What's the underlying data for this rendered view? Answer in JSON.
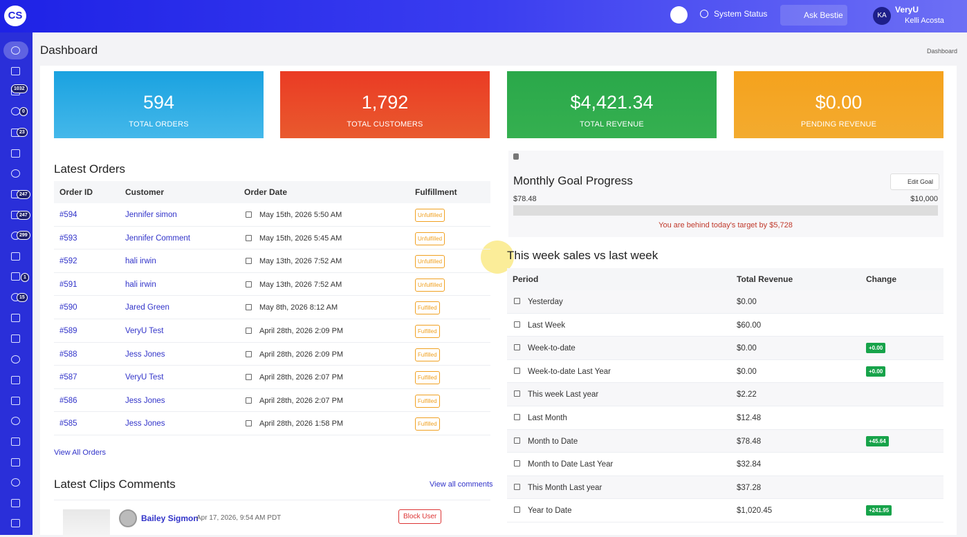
{
  "header": {
    "brand": "CS",
    "system_status": "System Status",
    "ask": "Ask Bestie",
    "user_short": "VeryU",
    "user_name": "Kelli Acosta",
    "avatar": "KA"
  },
  "sidebar": {
    "badges": [
      1032,
      0,
      23,
      247,
      247,
      299,
      1,
      15
    ]
  },
  "page_title": "Dashboard",
  "breadcrumb": "Dashboard",
  "stats": [
    {
      "value": "594",
      "label": "TOTAL ORDERS"
    },
    {
      "value": "1,792",
      "label": "TOTAL CUSTOMERS"
    },
    {
      "value": "$4,421.34",
      "label": "TOTAL REVENUE"
    },
    {
      "value": "$0.00",
      "label": "PENDING REVENUE"
    }
  ],
  "orders": {
    "title": "Latest Orders",
    "columns": [
      "Order ID",
      "Customer",
      "Order Date",
      "Fulfillment"
    ],
    "rows": [
      [
        "#594",
        "Jennifer simon",
        "May 15th, 2026 5:50 AM",
        "Unfulfilled"
      ],
      [
        "#593",
        "Jennifer Comment",
        "May 15th, 2026 5:45 AM",
        "Unfulfilled"
      ],
      [
        "#592",
        "hali irwin",
        "May 13th, 2026 7:52 AM",
        "Unfulfilled"
      ],
      [
        "#591",
        "hali irwin",
        "May 13th, 2026 7:52 AM",
        "Unfulfilled"
      ],
      [
        "#590",
        "Jared Green",
        "May 8th, 2026 8:12 AM",
        "Fulfilled"
      ],
      [
        "#589",
        "VeryU Test",
        "April 28th, 2026 2:09 PM",
        "Fulfilled"
      ],
      [
        "#588",
        "Jess Jones",
        "April 28th, 2026 2:09 PM",
        "Fulfilled"
      ],
      [
        "#587",
        "VeryU Test",
        "April 28th, 2026 2:07 PM",
        "Fulfilled"
      ],
      [
        "#586",
        "Jess Jones",
        "April 28th, 2026 2:07 PM",
        "Fulfilled"
      ],
      [
        "#585",
        "Jess Jones",
        "April 28th, 2026 1:58 PM",
        "Fulfilled"
      ]
    ],
    "view_all": "View All Orders"
  },
  "comments": {
    "title": "Latest Clips Comments",
    "view_all": "View all comments",
    "items": [
      {
        "name": "Bailey Sigmon",
        "date": "Apr 17, 2026, 9:54 AM PDT",
        "action": "Block User"
      }
    ]
  },
  "goal": {
    "title": "Monthly Goal Progress",
    "edit": "Edit Goal",
    "current": "$78.48",
    "target": "$10,000",
    "message": "You are behind today's target by $5,728"
  },
  "sales": {
    "title": "This week sales vs last week",
    "columns": [
      "Period",
      "Total Revenue",
      "Change"
    ],
    "rows": [
      [
        "Yesterday",
        "$0.00",
        null
      ],
      [
        "Last Week",
        "$60.00",
        null
      ],
      [
        "Week-to-date",
        "$0.00",
        "+0.00"
      ],
      [
        "Week-to-date Last Year",
        "$0.00",
        "+0.00"
      ],
      [
        "This week Last year",
        "$2.22",
        null
      ],
      [
        "Last Month",
        "$12.48",
        null
      ],
      [
        "Month to Date",
        "$78.48",
        "+45.64"
      ],
      [
        "Month to Date Last Year",
        "$32.84",
        null
      ],
      [
        "This Month Last year",
        "$37.28",
        null
      ],
      [
        "Year to Date",
        "$1,020.45",
        "+241.95"
      ]
    ]
  }
}
